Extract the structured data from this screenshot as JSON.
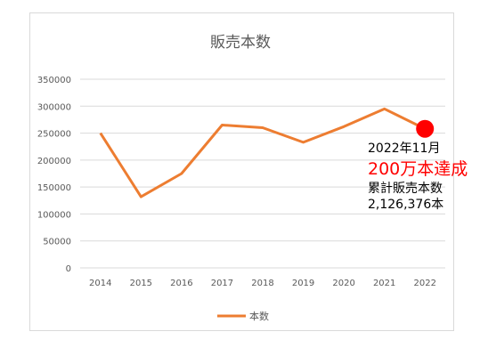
{
  "chart_data": {
    "type": "line",
    "title": "販売本数",
    "categories": [
      "2014",
      "2015",
      "2016",
      "2017",
      "2018",
      "2019",
      "2020",
      "2021",
      "2022"
    ],
    "series": [
      {
        "name": "本数",
        "values": [
          250000,
          132000,
          175000,
          265000,
          260000,
          233000,
          262000,
          295000,
          258000
        ],
        "color": "#ED7D31"
      }
    ],
    "ylim": [
      0,
      350000
    ],
    "yticks": [
      0,
      50000,
      100000,
      150000,
      200000,
      250000,
      300000,
      350000
    ],
    "ytick_labels": [
      "0",
      "50000",
      "100000",
      "150000",
      "200000",
      "250000",
      "300000",
      "350000"
    ],
    "grid": true,
    "legend_position": "bottom",
    "highlight": {
      "category": "2022",
      "value": 258000,
      "color": "#FF0000"
    },
    "annotation": {
      "date": "2022年11月",
      "headline": "200万本達成",
      "headline_color": "#FF0000",
      "caption": "累計販売本数",
      "total": "2,126,376本"
    }
  }
}
